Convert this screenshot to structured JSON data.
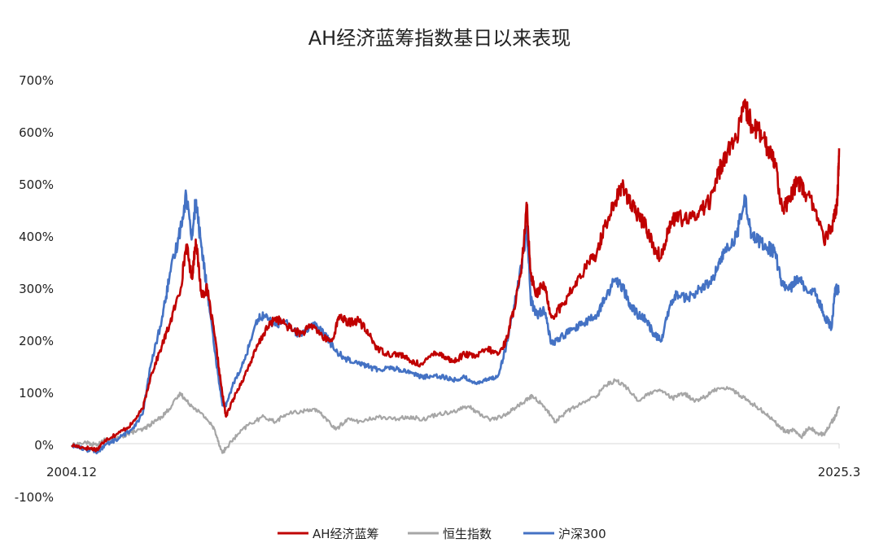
{
  "chart_data": {
    "type": "line",
    "title": "AH经济蓝筹指数基日以来表现",
    "xlabel": "",
    "ylabel": "",
    "x_tick_labels": [
      "2004.12",
      "2025.3"
    ],
    "y_tick_labels": [
      "-100%",
      "0%",
      "100%",
      "200%",
      "300%",
      "400%",
      "500%",
      "600%",
      "700%"
    ],
    "ylim": [
      -100,
      700
    ],
    "xlim": [
      2004.92,
      2025.2
    ],
    "grid": false,
    "legend_position": "bottom",
    "series": [
      {
        "name": "AH经济蓝筹",
        "color": "#c00000",
        "points": [
          [
            2004.92,
            0
          ],
          [
            2005.3,
            -5
          ],
          [
            2005.6,
            -8
          ],
          [
            2005.8,
            10
          ],
          [
            2006.2,
            25
          ],
          [
            2006.5,
            40
          ],
          [
            2006.8,
            70
          ],
          [
            2007.0,
            130
          ],
          [
            2007.3,
            190
          ],
          [
            2007.5,
            230
          ],
          [
            2007.8,
            300
          ],
          [
            2007.95,
            385
          ],
          [
            2008.1,
            320
          ],
          [
            2008.2,
            395
          ],
          [
            2008.35,
            290
          ],
          [
            2008.5,
            300
          ],
          [
            2008.7,
            210
          ],
          [
            2008.9,
            100
          ],
          [
            2009.0,
            55
          ],
          [
            2009.2,
            90
          ],
          [
            2009.5,
            135
          ],
          [
            2009.8,
            185
          ],
          [
            2010.0,
            215
          ],
          [
            2010.3,
            245
          ],
          [
            2010.5,
            235
          ],
          [
            2010.8,
            220
          ],
          [
            2011.0,
            215
          ],
          [
            2011.3,
            230
          ],
          [
            2011.6,
            205
          ],
          [
            2011.8,
            200
          ],
          [
            2012.0,
            250
          ],
          [
            2012.2,
            235
          ],
          [
            2012.5,
            240
          ],
          [
            2012.8,
            210
          ],
          [
            2013.0,
            185
          ],
          [
            2013.3,
            175
          ],
          [
            2013.6,
            175
          ],
          [
            2013.9,
            160
          ],
          [
            2014.2,
            155
          ],
          [
            2014.5,
            180
          ],
          [
            2014.8,
            170
          ],
          [
            2015.0,
            160
          ],
          [
            2015.3,
            175
          ],
          [
            2015.6,
            170
          ],
          [
            2015.9,
            185
          ],
          [
            2016.2,
            175
          ],
          [
            2016.4,
            200
          ],
          [
            2016.6,
            260
          ],
          [
            2016.8,
            330
          ],
          [
            2016.95,
            460
          ],
          [
            2017.05,
            330
          ],
          [
            2017.2,
            290
          ],
          [
            2017.4,
            310
          ],
          [
            2017.6,
            245
          ],
          [
            2017.9,
            270
          ],
          [
            2018.2,
            305
          ],
          [
            2018.5,
            340
          ],
          [
            2018.8,
            370
          ],
          [
            2019.0,
            420
          ],
          [
            2019.3,
            470
          ],
          [
            2019.5,
            500
          ],
          [
            2019.7,
            460
          ],
          [
            2019.9,
            440
          ],
          [
            2020.1,
            420
          ],
          [
            2020.3,
            380
          ],
          [
            2020.5,
            360
          ],
          [
            2020.7,
            420
          ],
          [
            2020.9,
            440
          ],
          [
            2021.2,
            430
          ],
          [
            2021.5,
            450
          ],
          [
            2021.8,
            470
          ],
          [
            2022.0,
            520
          ],
          [
            2022.2,
            560
          ],
          [
            2022.5,
            590
          ],
          [
            2022.7,
            650
          ],
          [
            2022.9,
            615
          ],
          [
            2023.1,
            600
          ],
          [
            2023.3,
            570
          ],
          [
            2023.5,
            550
          ],
          [
            2023.7,
            450
          ],
          [
            2023.9,
            470
          ],
          [
            2024.1,
            510
          ],
          [
            2024.3,
            485
          ],
          [
            2024.6,
            450
          ],
          [
            2024.8,
            390
          ],
          [
            2025.0,
            420
          ],
          [
            2025.15,
            460
          ],
          [
            2025.2,
            570
          ]
        ]
      },
      {
        "name": "恒生指数",
        "color": "#a6a6a6",
        "points": [
          [
            2004.92,
            0
          ],
          [
            2005.3,
            5
          ],
          [
            2005.6,
            0
          ],
          [
            2005.8,
            10
          ],
          [
            2006.2,
            15
          ],
          [
            2006.5,
            25
          ],
          [
            2006.8,
            30
          ],
          [
            2007.0,
            40
          ],
          [
            2007.3,
            55
          ],
          [
            2007.5,
            70
          ],
          [
            2007.8,
            100
          ],
          [
            2007.95,
            85
          ],
          [
            2008.2,
            70
          ],
          [
            2008.5,
            50
          ],
          [
            2008.7,
            30
          ],
          [
            2008.9,
            -15
          ],
          [
            2009.0,
            -5
          ],
          [
            2009.3,
            20
          ],
          [
            2009.6,
            40
          ],
          [
            2010.0,
            55
          ],
          [
            2010.3,
            45
          ],
          [
            2010.6,
            60
          ],
          [
            2011.0,
            65
          ],
          [
            2011.3,
            70
          ],
          [
            2011.6,
            55
          ],
          [
            2011.9,
            30
          ],
          [
            2012.2,
            50
          ],
          [
            2012.6,
            45
          ],
          [
            2013.0,
            55
          ],
          [
            2013.4,
            50
          ],
          [
            2013.8,
            55
          ],
          [
            2014.2,
            50
          ],
          [
            2014.6,
            60
          ],
          [
            2015.0,
            65
          ],
          [
            2015.4,
            75
          ],
          [
            2015.7,
            60
          ],
          [
            2016.0,
            50
          ],
          [
            2016.3,
            55
          ],
          [
            2016.6,
            70
          ],
          [
            2016.9,
            85
          ],
          [
            2017.1,
            95
          ],
          [
            2017.4,
            75
          ],
          [
            2017.7,
            45
          ],
          [
            2018.0,
            65
          ],
          [
            2018.4,
            80
          ],
          [
            2018.8,
            95
          ],
          [
            2019.0,
            115
          ],
          [
            2019.3,
            125
          ],
          [
            2019.6,
            110
          ],
          [
            2019.9,
            85
          ],
          [
            2020.2,
            100
          ],
          [
            2020.5,
            105
          ],
          [
            2020.8,
            90
          ],
          [
            2021.1,
            100
          ],
          [
            2021.4,
            85
          ],
          [
            2021.7,
            95
          ],
          [
            2022.0,
            110
          ],
          [
            2022.3,
            110
          ],
          [
            2022.6,
            95
          ],
          [
            2022.9,
            80
          ],
          [
            2023.2,
            65
          ],
          [
            2023.5,
            45
          ],
          [
            2023.8,
            25
          ],
          [
            2024.0,
            30
          ],
          [
            2024.2,
            15
          ],
          [
            2024.4,
            35
          ],
          [
            2024.6,
            25
          ],
          [
            2024.8,
            20
          ],
          [
            2025.0,
            45
          ],
          [
            2025.1,
            55
          ],
          [
            2025.2,
            75
          ]
        ]
      },
      {
        "name": "沪深300",
        "color": "#4472c4",
        "points": [
          [
            2004.92,
            0
          ],
          [
            2005.3,
            -8
          ],
          [
            2005.6,
            -12
          ],
          [
            2005.8,
            0
          ],
          [
            2006.2,
            15
          ],
          [
            2006.5,
            30
          ],
          [
            2006.8,
            60
          ],
          [
            2007.0,
            150
          ],
          [
            2007.3,
            240
          ],
          [
            2007.5,
            320
          ],
          [
            2007.75,
            400
          ],
          [
            2007.95,
            480
          ],
          [
            2008.1,
            400
          ],
          [
            2008.2,
            470
          ],
          [
            2008.35,
            380
          ],
          [
            2008.5,
            300
          ],
          [
            2008.7,
            180
          ],
          [
            2008.9,
            80
          ],
          [
            2009.0,
            75
          ],
          [
            2009.2,
            120
          ],
          [
            2009.5,
            165
          ],
          [
            2009.8,
            240
          ],
          [
            2010.0,
            250
          ],
          [
            2010.3,
            230
          ],
          [
            2010.5,
            240
          ],
          [
            2010.8,
            220
          ],
          [
            2011.0,
            210
          ],
          [
            2011.3,
            235
          ],
          [
            2011.6,
            215
          ],
          [
            2011.9,
            180
          ],
          [
            2012.2,
            165
          ],
          [
            2012.5,
            160
          ],
          [
            2012.8,
            150
          ],
          [
            2013.0,
            145
          ],
          [
            2013.3,
            150
          ],
          [
            2013.6,
            145
          ],
          [
            2013.9,
            140
          ],
          [
            2014.2,
            130
          ],
          [
            2014.5,
            135
          ],
          [
            2014.8,
            130
          ],
          [
            2015.0,
            125
          ],
          [
            2015.3,
            130
          ],
          [
            2015.6,
            120
          ],
          [
            2015.9,
            125
          ],
          [
            2016.2,
            135
          ],
          [
            2016.4,
            190
          ],
          [
            2016.6,
            260
          ],
          [
            2016.8,
            340
          ],
          [
            2016.95,
            420
          ],
          [
            2017.05,
            280
          ],
          [
            2017.2,
            250
          ],
          [
            2017.4,
            260
          ],
          [
            2017.6,
            195
          ],
          [
            2017.9,
            210
          ],
          [
            2018.2,
            225
          ],
          [
            2018.5,
            235
          ],
          [
            2018.8,
            250
          ],
          [
            2019.0,
            280
          ],
          [
            2019.3,
            320
          ],
          [
            2019.5,
            300
          ],
          [
            2019.7,
            265
          ],
          [
            2019.9,
            250
          ],
          [
            2020.1,
            240
          ],
          [
            2020.3,
            215
          ],
          [
            2020.5,
            200
          ],
          [
            2020.7,
            260
          ],
          [
            2020.9,
            290
          ],
          [
            2021.2,
            280
          ],
          [
            2021.5,
            300
          ],
          [
            2021.8,
            310
          ],
          [
            2022.0,
            340
          ],
          [
            2022.2,
            380
          ],
          [
            2022.5,
            400
          ],
          [
            2022.7,
            480
          ],
          [
            2022.9,
            400
          ],
          [
            2023.1,
            390
          ],
          [
            2023.3,
            380
          ],
          [
            2023.5,
            370
          ],
          [
            2023.7,
            310
          ],
          [
            2023.9,
            300
          ],
          [
            2024.1,
            320
          ],
          [
            2024.3,
            305
          ],
          [
            2024.6,
            290
          ],
          [
            2024.8,
            250
          ],
          [
            2025.0,
            225
          ],
          [
            2025.1,
            300
          ],
          [
            2025.2,
            295
          ]
        ]
      }
    ]
  }
}
